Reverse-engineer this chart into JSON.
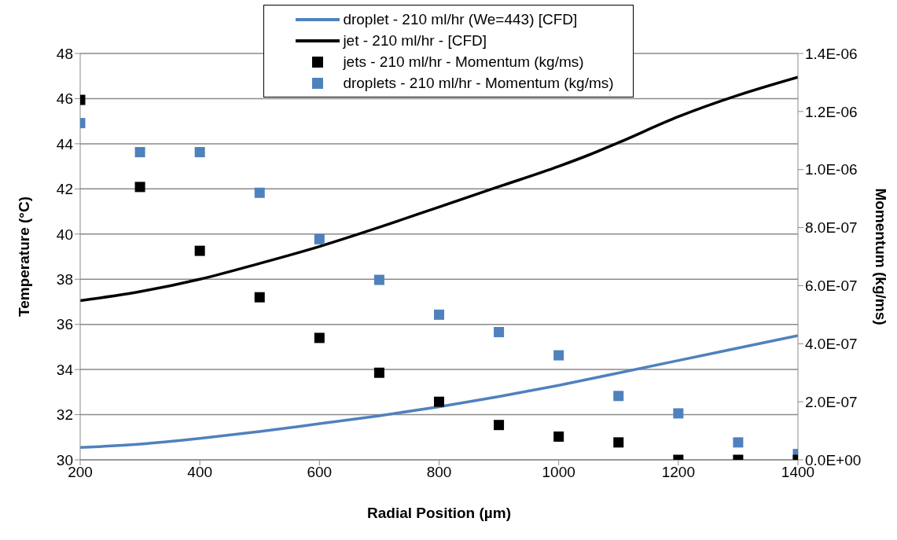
{
  "chart_data": {
    "type": "line",
    "xlabel": "Radial Position (µm)",
    "ylabel": "Temperature (°C)",
    "y2label": "Momentum (kg/ms)",
    "xlim": [
      200,
      1400
    ],
    "xticks": [
      200,
      400,
      600,
      800,
      1000,
      1200,
      1400
    ],
    "ylim": [
      30,
      48
    ],
    "yticks": [
      30,
      32,
      34,
      36,
      38,
      40,
      42,
      44,
      46,
      48
    ],
    "y2lim": [
      0,
      1.4e-06
    ],
    "y2ticks": [
      {
        "value": 0,
        "label": "0.0E+00"
      },
      {
        "value": 2e-07,
        "label": "2.0E-07"
      },
      {
        "value": 4e-07,
        "label": "4.0E-07"
      },
      {
        "value": 6e-07,
        "label": "6.0E-07"
      },
      {
        "value": 8e-07,
        "label": "8.0E-07"
      },
      {
        "value": 1e-06,
        "label": "1.0E-06"
      },
      {
        "value": 1.2e-06,
        "label": "1.2E-06"
      },
      {
        "value": 1.4e-06,
        "label": "1.4E-06"
      }
    ],
    "grid": "y",
    "legend": "top",
    "series": [
      {
        "name": "droplet - 210 ml/hr (We=443) [CFD]",
        "marker": "none",
        "color": "#4f81bd",
        "x": [
          200,
          300,
          400,
          500,
          600,
          700,
          800,
          900,
          1000,
          1100,
          1200,
          1300,
          1400
        ],
        "values": [
          30.55,
          30.7,
          30.95,
          31.25,
          31.6,
          31.95,
          32.35,
          32.8,
          33.3,
          33.85,
          34.4,
          34.95,
          35.5
        ]
      },
      {
        "name": "jet - 210 ml/hr - [CFD]",
        "marker": "none",
        "color": "#000000",
        "x": [
          200,
          300,
          400,
          500,
          600,
          700,
          800,
          900,
          1000,
          1050,
          1100,
          1200,
          1300,
          1400
        ],
        "values": [
          37.05,
          37.45,
          38.0,
          38.7,
          39.45,
          40.3,
          41.2,
          42.1,
          43.0,
          43.5,
          44.05,
          45.2,
          46.15,
          46.95
        ]
      },
      {
        "name": "jets - 210 ml/hr - Momentum (kg/ms)",
        "type": "scatter",
        "marker": "square",
        "axis": "y2",
        "color": "#000000",
        "x": [
          200,
          300,
          400,
          500,
          600,
          700,
          800,
          900,
          1000,
          1100,
          1200,
          1300,
          1400
        ],
        "values": [
          1.24e-06,
          9.4e-07,
          7.2e-07,
          5.6e-07,
          4.2e-07,
          3e-07,
          2e-07,
          1.2e-07,
          8e-08,
          6e-08,
          0,
          0,
          0
        ]
      },
      {
        "name": "droplets - 210 ml/hr - Momentum (kg/ms)",
        "type": "scatter",
        "marker": "square",
        "axis": "y2",
        "color": "#4f81bd",
        "x": [
          200,
          300,
          400,
          500,
          600,
          700,
          800,
          900,
          1000,
          1100,
          1200,
          1300,
          1400
        ],
        "values": [
          1.16e-06,
          1.06e-06,
          1.06e-06,
          9.2e-07,
          7.6e-07,
          6.2e-07,
          5e-07,
          4.4e-07,
          3.6e-07,
          2.2e-07,
          1.6e-07,
          6e-08,
          2e-08
        ]
      }
    ]
  }
}
